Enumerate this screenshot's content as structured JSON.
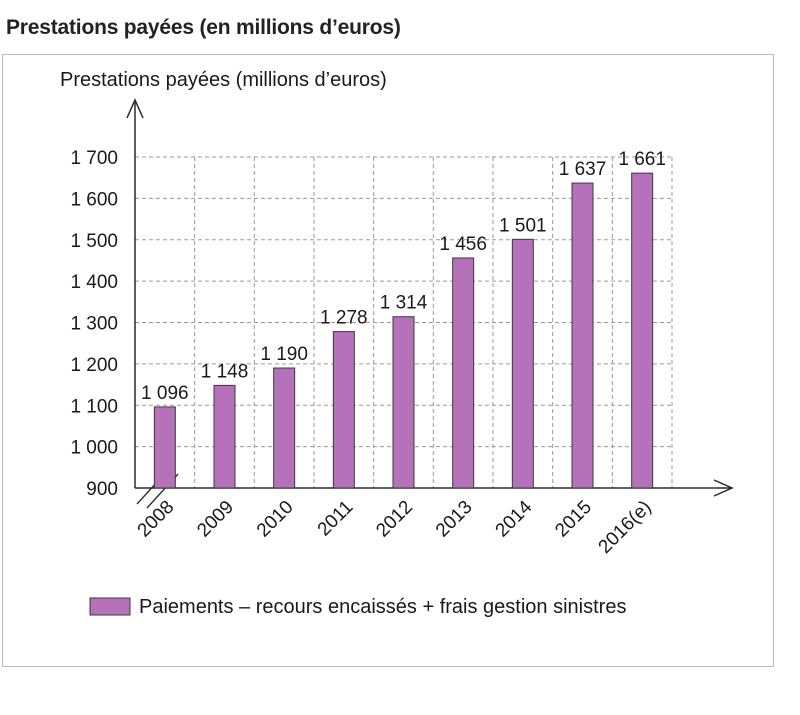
{
  "title": "Prestations payées (en millions d’euros)",
  "chart_data": {
    "type": "bar",
    "ylabel": "Prestations payées (millions d’euros)",
    "xlabel": "",
    "categories": [
      "2008",
      "2009",
      "2010",
      "2011",
      "2012",
      "2013",
      "2014",
      "2015",
      "2016(e)"
    ],
    "series": [
      {
        "name": "Paiements – recours encaissés + frais gestion sinistres",
        "values": [
          1096,
          1148,
          1190,
          1278,
          1314,
          1456,
          1501,
          1637,
          1661
        ],
        "labels": [
          "1 096",
          "1 148",
          "1 190",
          "1 278",
          "1 314",
          "1 456",
          "1 501",
          "1 637",
          "1 661"
        ],
        "color": "#b572bb"
      }
    ],
    "ylim": [
      900,
      1700
    ],
    "yticks": [
      900,
      1000,
      1100,
      1200,
      1300,
      1400,
      1500,
      1600,
      1700
    ],
    "ytick_labels": [
      "900",
      "1 000",
      "1 100",
      "1 200",
      "1 300",
      "1 400",
      "1 500",
      "1 600",
      "1 700"
    ],
    "axis_break": true,
    "grid": true,
    "legend_position": "bottom",
    "colors": {
      "bar": "#b572bb",
      "bar_edge": "#3a3a3a",
      "grid": "#9a9a9a",
      "frame": "#b9bcbf"
    }
  }
}
